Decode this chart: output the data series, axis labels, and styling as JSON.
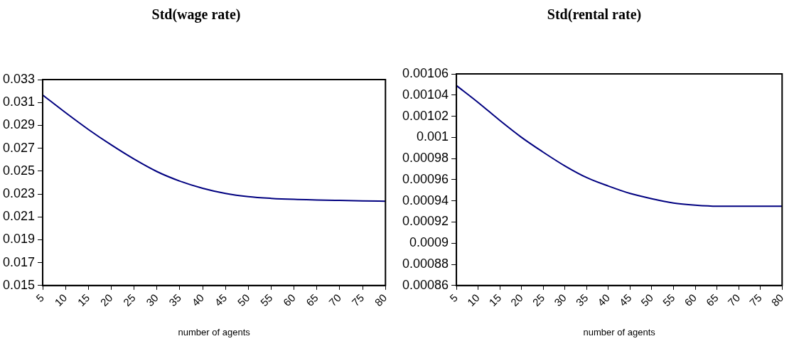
{
  "chart_data": [
    {
      "type": "line",
      "title": "Std(wage rate)",
      "xlabel": "number of agents",
      "categories": [
        "5",
        "10",
        "15",
        "20",
        "25",
        "30",
        "35",
        "40",
        "45",
        "50",
        "55",
        "60",
        "65",
        "70",
        "75",
        "80"
      ],
      "series": [
        {
          "color": "#000080",
          "values": [
            0.03165,
            0.03011,
            0.02864,
            0.02729,
            0.02605,
            0.02496,
            0.02413,
            0.0235,
            0.02305,
            0.02277,
            0.02262,
            0.02253,
            0.02248,
            0.02244,
            0.0224,
            0.02237
          ]
        }
      ],
      "ylim": [
        0.015,
        0.033
      ],
      "yticks": [
        0.015,
        0.017,
        0.019,
        0.021,
        0.023,
        0.025,
        0.027,
        0.029,
        0.031,
        0.033
      ],
      "grid": false,
      "legend": false,
      "marker": "none",
      "line_style": "solid"
    },
    {
      "type": "line",
      "title": "Std(rental rate)",
      "xlabel": "number of agents",
      "categories": [
        "5",
        "10",
        "15",
        "20",
        "25",
        "30",
        "35",
        "40",
        "45",
        "50",
        "55",
        "60",
        "65",
        "70",
        "75",
        "80"
      ],
      "series": [
        {
          "color": "#000080",
          "values": [
            0.001049,
            0.001033,
            0.001016,
            0.001,
            0.000986,
            0.000973,
            0.000962,
            0.000954,
            0.000947,
            0.000942,
            0.000938,
            0.000936,
            0.000935,
            0.000935,
            0.000935,
            0.000935
          ]
        }
      ],
      "ylim": [
        0.00086,
        0.00106
      ],
      "yticks": [
        0.00086,
        0.00088,
        0.0009,
        0.00092,
        0.00094,
        0.00096,
        0.00098,
        0.001,
        0.00102,
        0.00104,
        0.00106
      ],
      "grid": false,
      "legend": false,
      "marker": "none",
      "line_style": "solid"
    }
  ]
}
